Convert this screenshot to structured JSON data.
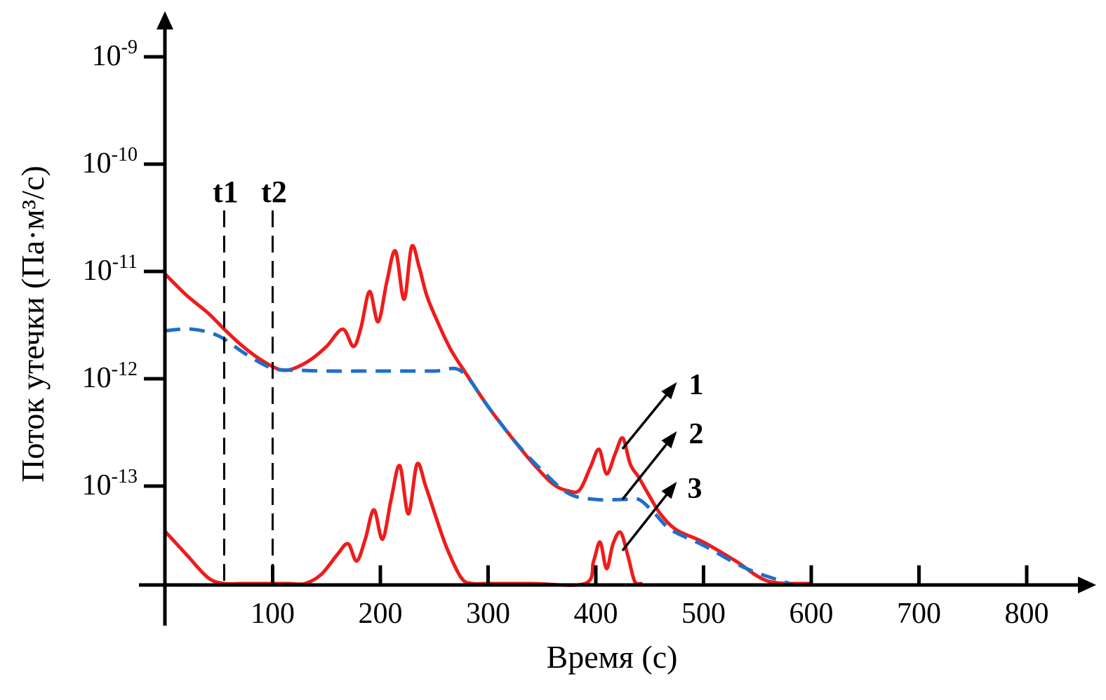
{
  "colors": {
    "red_series": "#ee1c1c",
    "blue_series": "#1f6fc8",
    "axis": "#000000",
    "marker_lines": "#000000"
  },
  "chart_data": {
    "type": "line",
    "xlabel": "Время (с)",
    "ylabel": "Поток утечки (Па·м³/с)",
    "x_ticks": [
      "100",
      "200",
      "300",
      "400",
      "500",
      "600",
      "700",
      "800"
    ],
    "x_tick_values": [
      100,
      200,
      300,
      400,
      500,
      600,
      700,
      800
    ],
    "xlim": [
      0,
      850
    ],
    "y_scale": "log",
    "y_ticks": [
      {
        "base": "10",
        "exp": "-9",
        "value": 1e-09
      },
      {
        "base": "10",
        "exp": "-10",
        "value": 1e-10
      },
      {
        "base": "10",
        "exp": "-11",
        "value": 1e-11
      },
      {
        "base": "10",
        "exp": "-12",
        "value": 1e-12
      },
      {
        "base": "10",
        "exp": "-13",
        "value": 1e-13
      }
    ],
    "markers": [
      {
        "label": "t1",
        "x": 55
      },
      {
        "label": "t2",
        "x": 100
      }
    ],
    "series": [
      {
        "label": "1",
        "style": "solid",
        "color": "red",
        "x": [
          0,
          20,
          40,
          55,
          70,
          85,
          100,
          110,
          120,
          135,
          150,
          165,
          175,
          182,
          190,
          198,
          206,
          214,
          222,
          229,
          236,
          243,
          252,
          265,
          280,
          300,
          320,
          340,
          360,
          375,
          385,
          395,
          403,
          410,
          418,
          425,
          432,
          440,
          450,
          460,
          475,
          500,
          530,
          560,
          600
        ],
        "y": [
          9.5e-12,
          6e-12,
          4.1e-12,
          2.9e-12,
          2.1e-12,
          1.6e-12,
          1.3e-12,
          1.2e-12,
          1.25e-12,
          1.5e-12,
          2e-12,
          2.9e-12,
          2e-12,
          3e-12,
          6.5e-12,
          3.4e-12,
          8e-12,
          1.55e-11,
          5.5e-12,
          1.7e-11,
          1.1e-11,
          6e-12,
          3.6e-12,
          1.9e-12,
          1.1e-12,
          5.5e-13,
          3e-13,
          1.7e-13,
          1.05e-13,
          9e-14,
          9.2e-14,
          1.5e-13,
          2.2e-13,
          1.3e-13,
          2e-13,
          2.8e-13,
          1.6e-13,
          1.2e-13,
          8e-14,
          5.5e-14,
          3.9e-14,
          3e-14,
          2e-14,
          1.3e-14,
          8.5e-15
        ]
      },
      {
        "label": "2",
        "style": "dashed",
        "color": "blue",
        "x": [
          0,
          25,
          50,
          75,
          100,
          125,
          150,
          200,
          250,
          275,
          300,
          325,
          350,
          375,
          400,
          425,
          440,
          455,
          470,
          500,
          540,
          580
        ],
        "y": [
          2.8e-12,
          2.9e-12,
          2.5e-12,
          1.7e-12,
          1.25e-12,
          1.2e-12,
          1.18e-12,
          1.18e-12,
          1.18e-12,
          1.18e-12,
          5.5e-13,
          2.6e-13,
          1.4e-13,
          8.5e-14,
          7.5e-14,
          7.5e-14,
          7.5e-14,
          5.5e-14,
          3.9e-14,
          2.8e-14,
          1.7e-14,
          1e-14
        ]
      },
      {
        "label": "3",
        "style": "solid",
        "color": "red",
        "x": [
          0,
          20,
          40,
          55,
          70,
          90,
          100,
          115,
          130,
          145,
          160,
          170,
          178,
          186,
          194,
          202,
          210,
          218,
          226,
          234,
          242,
          252,
          262,
          275,
          285,
          300,
          340,
          390,
          398,
          404,
          410,
          416,
          423,
          430,
          436,
          442
        ],
        "y": [
          3.8e-14,
          2.3e-14,
          1.4e-14,
          9.6e-15,
          8.8e-15,
          8.5e-15,
          8.5e-15,
          8.9e-15,
          1.07e-14,
          1.5e-14,
          2.3e-14,
          2.9e-14,
          2e-14,
          3.2e-14,
          6e-14,
          3.2e-14,
          7.5e-14,
          1.55e-13,
          5.5e-14,
          1.6e-13,
          1e-13,
          5e-14,
          2.6e-14,
          1.4e-14,
          9e-15,
          9e-15,
          9e-15,
          9e-15,
          2e-14,
          3e-14,
          1.7e-14,
          2.9e-14,
          3.7e-14,
          2.2e-14,
          1.3e-14,
          8.5e-15
        ]
      }
    ]
  }
}
